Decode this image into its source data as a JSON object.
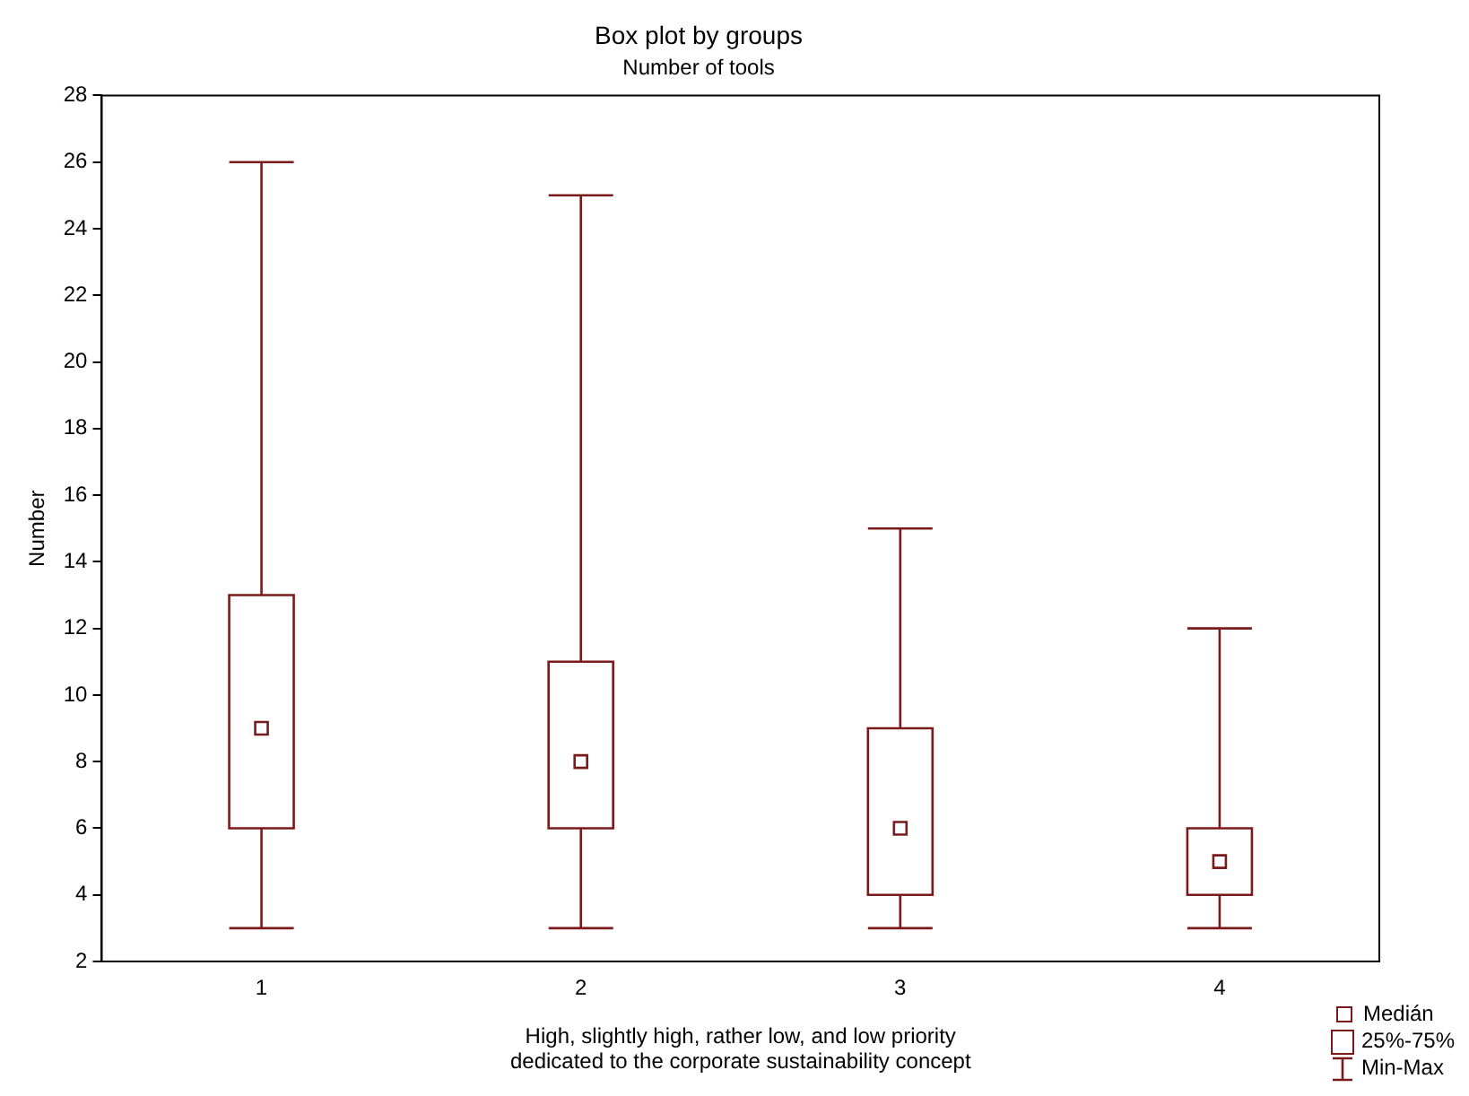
{
  "chart_data": {
    "type": "box",
    "title": "Box plot by groups",
    "subtitle": "Number of tools",
    "xlabel": "High, slightly high, rather low, and low priority dedicated to the corporate sustainability concept",
    "ylabel": "Number",
    "categories": [
      "1",
      "2",
      "3",
      "4"
    ],
    "series": [
      {
        "color": "#7b1a1a",
        "boxes": [
          {
            "low": 3,
            "q1": 6,
            "median": 9,
            "q3": 13,
            "high": 26
          },
          {
            "low": 3,
            "q1": 6,
            "median": 8,
            "q3": 11,
            "high": 25
          },
          {
            "low": 3,
            "q1": 4,
            "median": 6,
            "q3": 9,
            "high": 15
          },
          {
            "low": 3,
            "q1": 4,
            "median": 5,
            "q3": 6,
            "high": 12
          }
        ]
      }
    ],
    "ylim": [
      2,
      28
    ],
    "yticks": [
      2,
      4,
      6,
      8,
      10,
      12,
      14,
      16,
      18,
      20,
      22,
      24,
      26,
      28
    ],
    "grid": false,
    "annotations": [
      "Medián",
      "25%-75%",
      "Min-Max"
    ]
  }
}
